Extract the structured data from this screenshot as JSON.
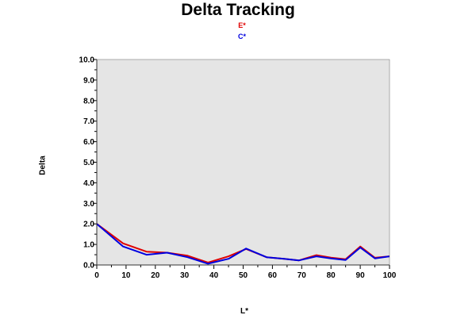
{
  "chart_data": {
    "type": "line",
    "title": "Delta Tracking",
    "xlabel": "L*",
    "ylabel": "Delta",
    "xlim": [
      0,
      100
    ],
    "ylim": [
      0,
      10
    ],
    "x_ticks": [
      "0",
      "10",
      "20",
      "30",
      "40",
      "50",
      "60",
      "70",
      "80",
      "90",
      "100"
    ],
    "y_ticks": [
      "0.0",
      "1.0",
      "2.0",
      "3.0",
      "4.0",
      "5.0",
      "6.0",
      "7.0",
      "8.0",
      "9.0",
      "10.0"
    ],
    "grid": false,
    "legend_position": "top-center",
    "plot_background": "#e5e5e5",
    "series": [
      {
        "name": "E*",
        "color": "#e00000",
        "x": [
          0,
          9,
          17,
          24,
          31,
          38,
          45,
          51,
          58,
          64,
          69,
          75,
          80,
          85,
          90,
          95,
          100
        ],
        "values": [
          2.0,
          1.05,
          0.65,
          0.6,
          0.45,
          0.12,
          0.42,
          0.78,
          0.38,
          0.3,
          0.22,
          0.48,
          0.36,
          0.28,
          0.9,
          0.35,
          0.42
        ]
      },
      {
        "name": "C*",
        "color": "#0000e0",
        "x": [
          0,
          9,
          17,
          24,
          31,
          38,
          45,
          51,
          58,
          64,
          69,
          75,
          80,
          85,
          90,
          95,
          100
        ],
        "values": [
          2.0,
          0.9,
          0.5,
          0.6,
          0.38,
          0.06,
          0.3,
          0.8,
          0.38,
          0.3,
          0.22,
          0.42,
          0.32,
          0.24,
          0.85,
          0.32,
          0.42
        ]
      }
    ]
  }
}
